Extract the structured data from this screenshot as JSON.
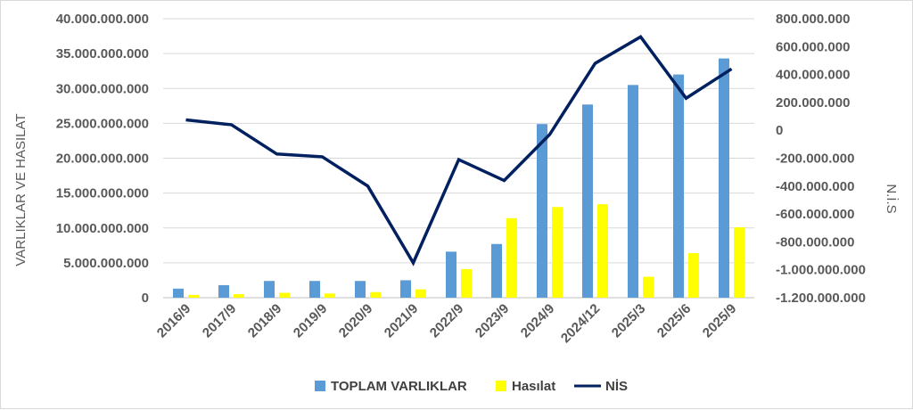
{
  "chart_data": {
    "type": "bar",
    "categories": [
      "2016/9",
      "2017/9",
      "2018/9",
      "2019/9",
      "2020/9",
      "2021/9",
      "2022/9",
      "2023/9",
      "2024/9",
      "2024/12",
      "2025/3",
      "2025/6",
      "2025/9"
    ],
    "series": [
      {
        "name": "TOPLAM VARLIKLAR",
        "type": "bar",
        "axis": "left",
        "color": "#5b9bd5",
        "values": [
          1300000000,
          1800000000,
          2400000000,
          2400000000,
          2400000000,
          2500000000,
          6600000000,
          7700000000,
          24900000000,
          27700000000,
          30500000000,
          32000000000,
          34300000000
        ]
      },
      {
        "name": "Hasılat",
        "type": "bar",
        "axis": "left",
        "color": "#ffff00",
        "values": [
          400000000,
          500000000,
          700000000,
          600000000,
          800000000,
          1200000000,
          4100000000,
          11400000000,
          13000000000,
          13400000000,
          3000000000,
          6400000000,
          10100000000
        ]
      },
      {
        "name": "NİS",
        "type": "line",
        "axis": "right",
        "color": "#002060",
        "values": [
          75000000,
          40000000,
          -170000000,
          -190000000,
          -400000000,
          -950000000,
          -210000000,
          -360000000,
          -30000000,
          480000000,
          670000000,
          230000000,
          440000000
        ]
      }
    ],
    "ylabel": "VARLIKLAR VE HASILAT",
    "y2label": "N.İ.S",
    "ylim": [
      0,
      40000000000
    ],
    "y2lim": [
      -1200000000,
      800000000
    ],
    "y_ticks": [
      "0",
      "5.000.000.000",
      "10.000.000.000",
      "15.000.000.000",
      "20.000.000.000",
      "25.000.000.000",
      "30.000.000.000",
      "35.000.000.000",
      "40.000.000.000"
    ],
    "y2_ticks": [
      "-1.200.000.000",
      "-1.000.000.000",
      "-800.000.000",
      "-600.000.000",
      "-400.000.000",
      "-200.000.000",
      "0",
      "200.000.000",
      "400.000.000",
      "600.000.000",
      "800.000.000"
    ],
    "grid": true,
    "legend_position": "bottom"
  }
}
